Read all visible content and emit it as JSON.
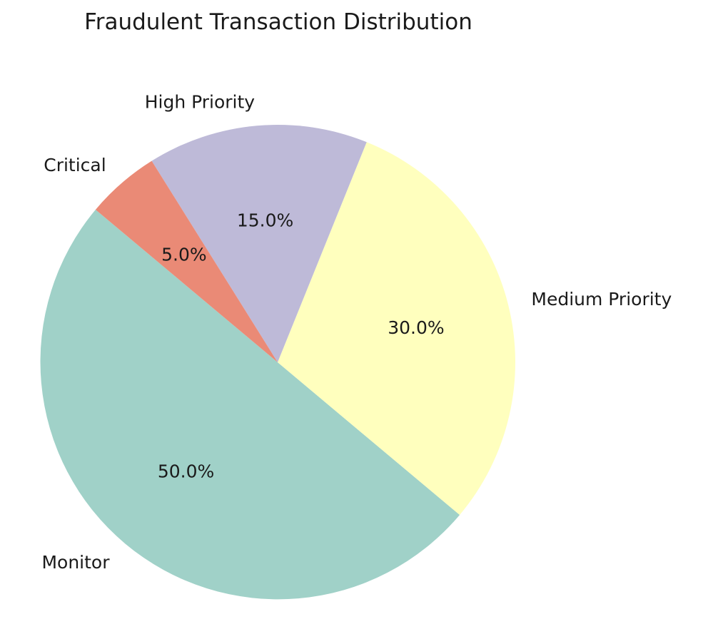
{
  "chart_data": {
    "type": "pie",
    "title": "Fraudulent Transaction Distribution",
    "start_angle_deg": 140,
    "direction": "counterclockwise",
    "slices": [
      {
        "label": "Monitor",
        "value": 50,
        "pct_label": "50.0%",
        "color": "#a0d1c8"
      },
      {
        "label": "Medium Priority",
        "value": 30,
        "pct_label": "30.0%",
        "color": "#ffffbe"
      },
      {
        "label": "High Priority",
        "value": 15,
        "pct_label": "15.0%",
        "color": "#bebad8"
      },
      {
        "label": "Critical",
        "value": 5,
        "pct_label": "5.0%",
        "color": "#ea8a76"
      }
    ]
  }
}
